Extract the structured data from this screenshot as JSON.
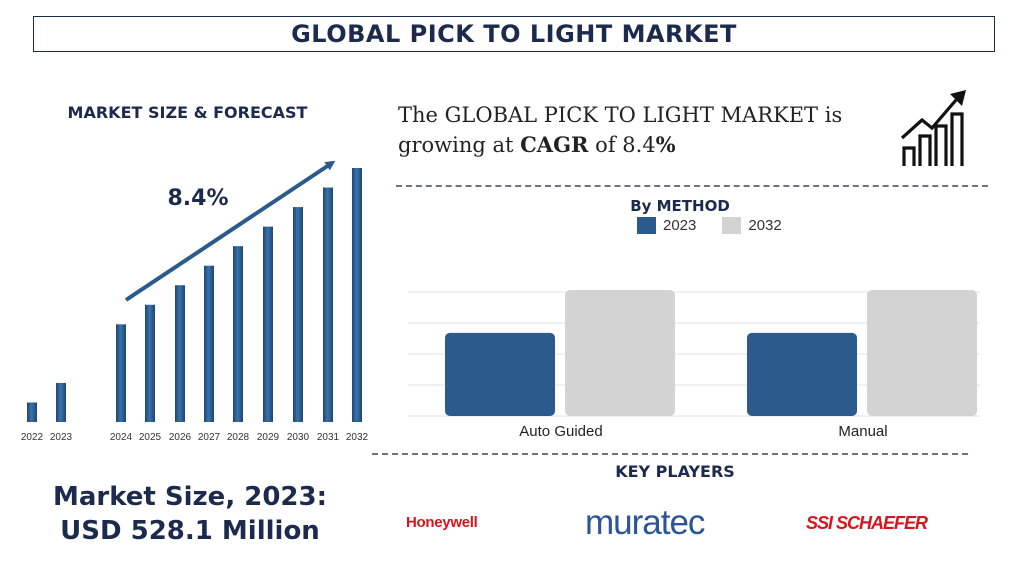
{
  "header": {
    "title": "GLOBAL PICK TO LIGHT MARKET"
  },
  "forecast": {
    "title": "MARKET SIZE & FORECAST",
    "cagr_label": "8.4%"
  },
  "growth": {
    "prefix": "The GLOBAL PICK TO LIGHT MARKET is growing at ",
    "cagr_word": "CAGR",
    "middle": " of 8.4",
    "suffix": "%"
  },
  "method": {
    "title": "By METHOD"
  },
  "market_size": {
    "line1": "Market Size, 2023:",
    "line2": "USD 528.1 Million"
  },
  "key_players": {
    "title": "KEY PLAYERS",
    "logos": [
      "Honeywell",
      "muratec",
      "SSI SCHAEFER"
    ]
  },
  "colors": {
    "navy": "#1c2a4d",
    "bar_blue": "#2b5a8c",
    "bar_grey": "#d3d3d3"
  },
  "icons": [
    "growth-chart-icon"
  ],
  "chart_data": [
    {
      "type": "bar",
      "title": "MARKET SIZE & FORECAST",
      "categories": [
        "2022",
        "2023",
        "2024",
        "2025",
        "2026",
        "2027",
        "2028",
        "2029",
        "2030",
        "2031",
        "2032"
      ],
      "values": [
        9,
        18,
        45,
        54,
        63,
        72,
        81,
        90,
        99,
        108,
        117
      ],
      "values_note": "relative heights; no y-axis printed",
      "annotation": "8.4%",
      "grid": false
    },
    {
      "type": "bar",
      "title": "By METHOD",
      "categories": [
        "Auto Guided",
        "Manual"
      ],
      "series": [
        {
          "name": "2023",
          "values": [
            66,
            66
          ]
        },
        {
          "name": "2032",
          "values": [
            100,
            100
          ]
        }
      ],
      "legend": "top",
      "grid": true
    }
  ]
}
